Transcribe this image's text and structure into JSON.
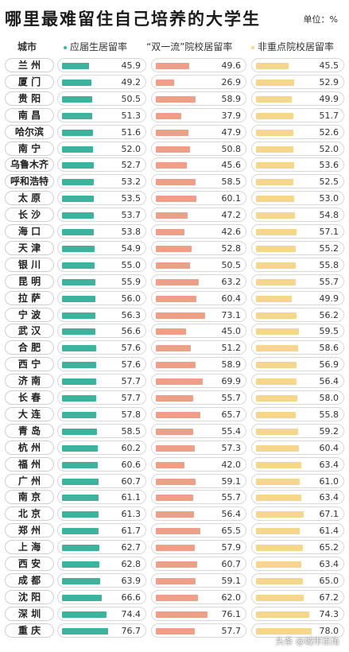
{
  "header": {
    "title": "哪里最难留住自己培养的大学生",
    "unit": "单位：%",
    "city_col": "城市",
    "col1": "应届生居留率",
    "col2": "“双一流”院校居留率",
    "col3": "非重点院校居留率"
  },
  "colors": {
    "col1": "#3db39e",
    "col2": "#ee9f87",
    "col3": "#f6d58c"
  },
  "watermark": "头条 @城市百角",
  "chart_data": {
    "type": "table",
    "title": "哪里最难留住自己培养的大学生",
    "unit": "%",
    "scale_max": {
      "col1": 80,
      "col2": 80,
      "col3": 80
    },
    "columns": [
      "应届生居留率",
      "“双一流”院校居留率",
      "非重点院校居留率"
    ],
    "rows": [
      {
        "city": "兰 州",
        "v1": 45.9,
        "v2": 49.6,
        "v3": 45.5
      },
      {
        "city": "厦 门",
        "v1": 49.2,
        "v2": 26.9,
        "v3": 52.9
      },
      {
        "city": "贵 阳",
        "v1": 50.5,
        "v2": 58.9,
        "v3": 49.9
      },
      {
        "city": "南 昌",
        "v1": 51.3,
        "v2": 37.9,
        "v3": 51.7
      },
      {
        "city": "哈尔滨",
        "v1": 51.6,
        "v2": 47.9,
        "v3": 52.6
      },
      {
        "city": "南 宁",
        "v1": 52.0,
        "v2": 50.8,
        "v3": 52.0
      },
      {
        "city": "乌鲁木齐",
        "v1": 52.7,
        "v2": 45.6,
        "v3": 53.6
      },
      {
        "city": "呼和浩特",
        "v1": 53.2,
        "v2": 58.5,
        "v3": 52.5
      },
      {
        "city": "太 原",
        "v1": 53.5,
        "v2": 60.1,
        "v3": 53.0
      },
      {
        "city": "长 沙",
        "v1": 53.7,
        "v2": 47.2,
        "v3": 54.8
      },
      {
        "city": "海 口",
        "v1": 53.8,
        "v2": 42.6,
        "v3": 57.1
      },
      {
        "city": "天 津",
        "v1": 54.9,
        "v2": 52.8,
        "v3": 55.2
      },
      {
        "city": "银 川",
        "v1": 55.0,
        "v2": 50.5,
        "v3": 55.8
      },
      {
        "city": "昆 明",
        "v1": 55.9,
        "v2": 63.2,
        "v3": 55.7
      },
      {
        "city": "拉 萨",
        "v1": 56.0,
        "v2": 60.4,
        "v3": 49.9
      },
      {
        "city": "宁 波",
        "v1": 56.3,
        "v2": 73.1,
        "v3": 56.2
      },
      {
        "city": "武 汉",
        "v1": 56.6,
        "v2": 45.0,
        "v3": 59.5
      },
      {
        "city": "合 肥",
        "v1": 57.6,
        "v2": 51.2,
        "v3": 58.6
      },
      {
        "city": "西 宁",
        "v1": 57.6,
        "v2": 58.9,
        "v3": 56.9
      },
      {
        "city": "济 南",
        "v1": 57.7,
        "v2": 69.9,
        "v3": 56.4
      },
      {
        "city": "长 春",
        "v1": 57.7,
        "v2": 55.7,
        "v3": 58.0
      },
      {
        "city": "大 连",
        "v1": 57.8,
        "v2": 65.7,
        "v3": 55.8
      },
      {
        "city": "青 岛",
        "v1": 58.5,
        "v2": 55.4,
        "v3": 59.2
      },
      {
        "city": "杭 州",
        "v1": 60.2,
        "v2": 57.3,
        "v3": 60.4
      },
      {
        "city": "福 州",
        "v1": 60.6,
        "v2": 42.0,
        "v3": 63.4
      },
      {
        "city": "广 州",
        "v1": 60.7,
        "v2": 59.1,
        "v3": 61.0
      },
      {
        "city": "南 京",
        "v1": 61.1,
        "v2": 55.7,
        "v3": 63.4
      },
      {
        "city": "北 京",
        "v1": 61.3,
        "v2": 56.4,
        "v3": 67.1
      },
      {
        "city": "郑 州",
        "v1": 61.7,
        "v2": 65.5,
        "v3": 61.4
      },
      {
        "city": "上 海",
        "v1": 62.7,
        "v2": 57.9,
        "v3": 65.2
      },
      {
        "city": "西 安",
        "v1": 62.8,
        "v2": 60.7,
        "v3": 63.4
      },
      {
        "city": "成 都",
        "v1": 63.9,
        "v2": 59.1,
        "v3": 65.0
      },
      {
        "city": "沈 阳",
        "v1": 66.6,
        "v2": 62.0,
        "v3": 67.2
      },
      {
        "city": "深 圳",
        "v1": 74.4,
        "v2": 76.1,
        "v3": 74.3
      },
      {
        "city": "重 庆",
        "v1": 76.7,
        "v2": 57.7,
        "v3": 78.0
      }
    ]
  }
}
